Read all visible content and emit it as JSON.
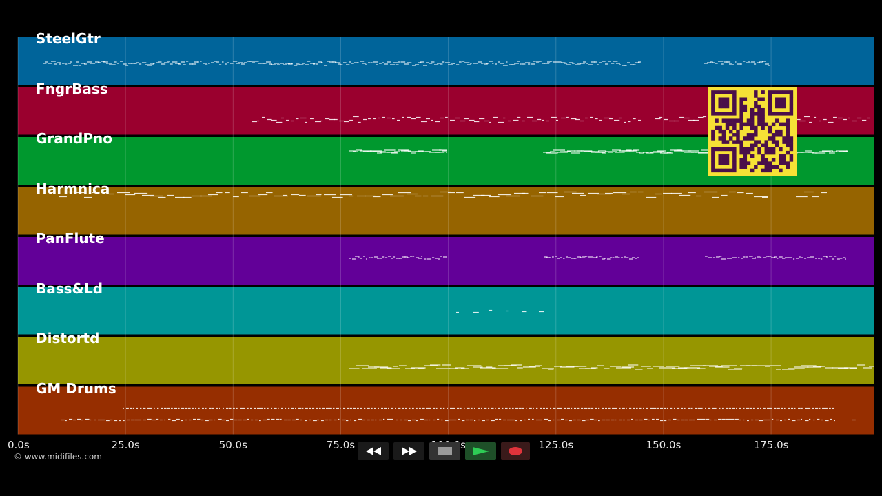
{
  "tracks": [
    {
      "name": "SteelGtr",
      "color": "#00649a"
    },
    {
      "name": "FngrBass",
      "color": "#9a002e"
    },
    {
      "name": "GrandPno",
      "color": "#00982e"
    },
    {
      "name": "Harmnica",
      "color": "#966400"
    },
    {
      "name": "PanFlute",
      "color": "#620098"
    },
    {
      "name": "Bass&Ld",
      "color": "#009696"
    },
    {
      "name": "Distortd",
      "color": "#969600"
    },
    {
      "name": "GM Drums",
      "color": "#962e00"
    }
  ],
  "timeline": {
    "ticks": [
      "0.0s",
      "25.0s",
      "50.0s",
      "75.0s",
      "100.0s",
      "125.0s",
      "150.0s",
      "175.0s"
    ],
    "tick_values": [
      0,
      25,
      50,
      75,
      100,
      125,
      150,
      175
    ],
    "max_seconds": 199
  },
  "copyright": "© www.midifiles.com",
  "transport": {
    "rewind": "rewind-icon",
    "fast_forward": "fast-forward-icon",
    "stop": "stop-icon",
    "play": "play-icon",
    "record": "record-icon",
    "colors": {
      "play": "#2ecc55",
      "record": "#e0333b"
    }
  },
  "qr_code": "qr-code"
}
